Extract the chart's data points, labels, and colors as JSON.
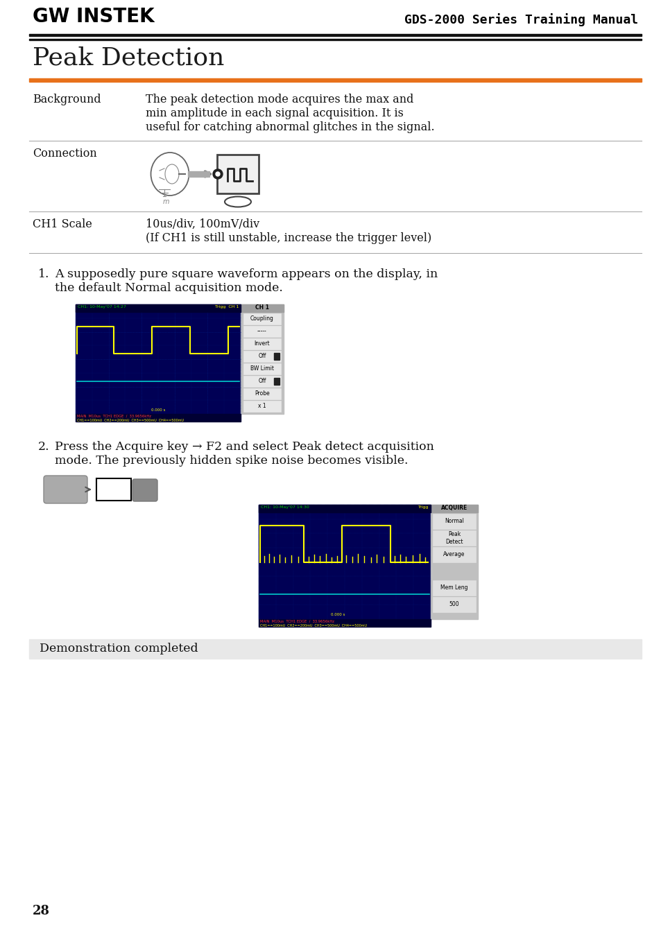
{
  "page_bg": "#ffffff",
  "header_logo": "GW INSTEK",
  "header_right": "GDS-2000 Series Training Manual",
  "title": "Peak Detection",
  "title_color": "#1a1a1a",
  "orange_line": "#e8711a",
  "section1_label": "Background",
  "section1_lines": [
    "The peak detection mode acquires the max and",
    "min amplitude in each signal acquisition. It is",
    "useful for catching abnormal glitches in the signal."
  ],
  "section2_label": "Connection",
  "section3_label": "CH1 Scale",
  "section3_lines": [
    "10us/div, 100mV/div",
    "(If CH1 is still unstable, increase the trigger level)"
  ],
  "step1_num": "1.",
  "step1_lines": [
    "A supposedly pure square waveform appears on the display, in",
    "the default Normal acquisition mode."
  ],
  "step2_num": "2.",
  "step2_lines": [
    "Press the Acquire key → F2 and select Peak detect acquisition",
    "mode. The previously hidden spike noise becomes visible."
  ],
  "demo_text": "Demonstration completed",
  "page_number": "28",
  "divider_color": "#aaaaaa",
  "black_line": "#111111",
  "text_color": "#111111",
  "body_font_size": 11.5,
  "label_font_size": 11.5,
  "title_font_size": 26,
  "header_font_size": 13,
  "logo_font_size": 20
}
